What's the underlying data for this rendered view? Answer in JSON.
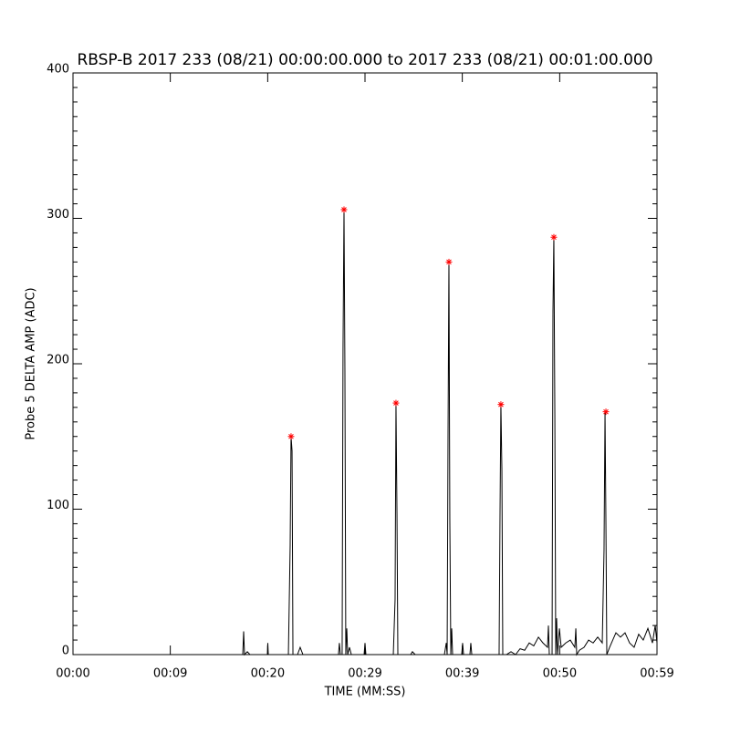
{
  "chart_data": {
    "type": "line",
    "title": "RBSP-B 2017 233 (08/21) 00:00:00.000 to 2017 233 (08/21) 00:01:00.000",
    "x_label": "TIME (MM:SS)",
    "y_label": "Probe 5 DELTA AMP (ADC)",
    "xlim": [
      0,
      59
    ],
    "xticks": [
      {
        "value": 0,
        "label": "00:00"
      },
      {
        "value": 9.83,
        "label": "00:09"
      },
      {
        "value": 19.67,
        "label": "00:20"
      },
      {
        "value": 29.5,
        "label": "00:29"
      },
      {
        "value": 39.33,
        "label": "00:39"
      },
      {
        "value": 49.17,
        "label": "00:50"
      },
      {
        "value": 59,
        "label": "00:59"
      }
    ],
    "ylim": [
      0,
      400
    ],
    "yticks": [
      0,
      100,
      200,
      300,
      400
    ],
    "series": [
      {
        "color": "#000000",
        "x": [
          0,
          17.15,
          17.24,
          17.33,
          17.61,
          17.88,
          19.64,
          19.68,
          19.73,
          21.76,
          21.94,
          22.03,
          22.13,
          22.22,
          22.68,
          22.95,
          23.23,
          26.82,
          26.91,
          27.01,
          27.19,
          27.28,
          27.38,
          27.47,
          27.56,
          27.66,
          27.75,
          27.93,
          28.12,
          29.41,
          29.5,
          29.59,
          32.36,
          32.54,
          32.63,
          32.73,
          32.82,
          34.11,
          34.29,
          34.57,
          37.52,
          37.71,
          37.8,
          37.89,
          37.98,
          38.07,
          38.17,
          38.26,
          38.35,
          39.27,
          39.36,
          39.46,
          40.1,
          40.19,
          40.29,
          43.05,
          43.14,
          43.23,
          43.33,
          43.42,
          43.79,
          44.25,
          44.71,
          45.17,
          45.63,
          46.09,
          46.55,
          47.02,
          47.48,
          47.94,
          48.03,
          48.12,
          48.4,
          48.49,
          48.58,
          48.68,
          48.77,
          48.86,
          48.95,
          49.14,
          49.32,
          49.78,
          50.24,
          50.7,
          50.8,
          50.89,
          51.16,
          51.63,
          52.09,
          52.55,
          53.01,
          53.47,
          53.65,
          53.75,
          53.84,
          53.93,
          54.21,
          54.85,
          55.31,
          55.77,
          56.23,
          56.69,
          57.15,
          57.61,
          58.08,
          58.54,
          58.82,
          59
        ],
        "values": [
          0,
          0,
          16,
          0,
          2,
          0,
          0,
          8,
          0,
          0,
          75,
          150,
          140,
          0,
          0,
          5,
          0,
          0,
          8,
          0,
          0,
          210,
          306,
          195,
          0,
          18,
          0,
          5,
          0,
          0,
          8,
          0,
          0,
          38,
          173,
          97,
          0,
          0,
          2,
          0,
          0,
          8,
          0,
          152,
          270,
          93,
          0,
          18,
          0,
          0,
          8,
          0,
          0,
          8,
          0,
          0,
          95,
          172,
          127,
          0,
          0,
          2,
          0,
          4,
          3,
          8,
          6,
          12,
          8,
          5,
          20,
          0,
          0,
          235,
          287,
          165,
          0,
          25,
          0,
          18,
          5,
          8,
          10,
          5,
          18,
          0,
          3,
          5,
          10,
          8,
          12,
          8,
          72,
          167,
          90,
          0,
          5,
          15,
          12,
          15,
          8,
          5,
          14,
          10,
          18,
          8,
          20,
          8
        ]
      },
      {
        "color": "#ff0000",
        "marker": "*",
        "x": [
          22.03,
          27.38,
          32.63,
          37.98,
          43.23,
          48.58,
          53.84
        ],
        "values": [
          150,
          306,
          173,
          270,
          172,
          287,
          167
        ]
      }
    ]
  }
}
